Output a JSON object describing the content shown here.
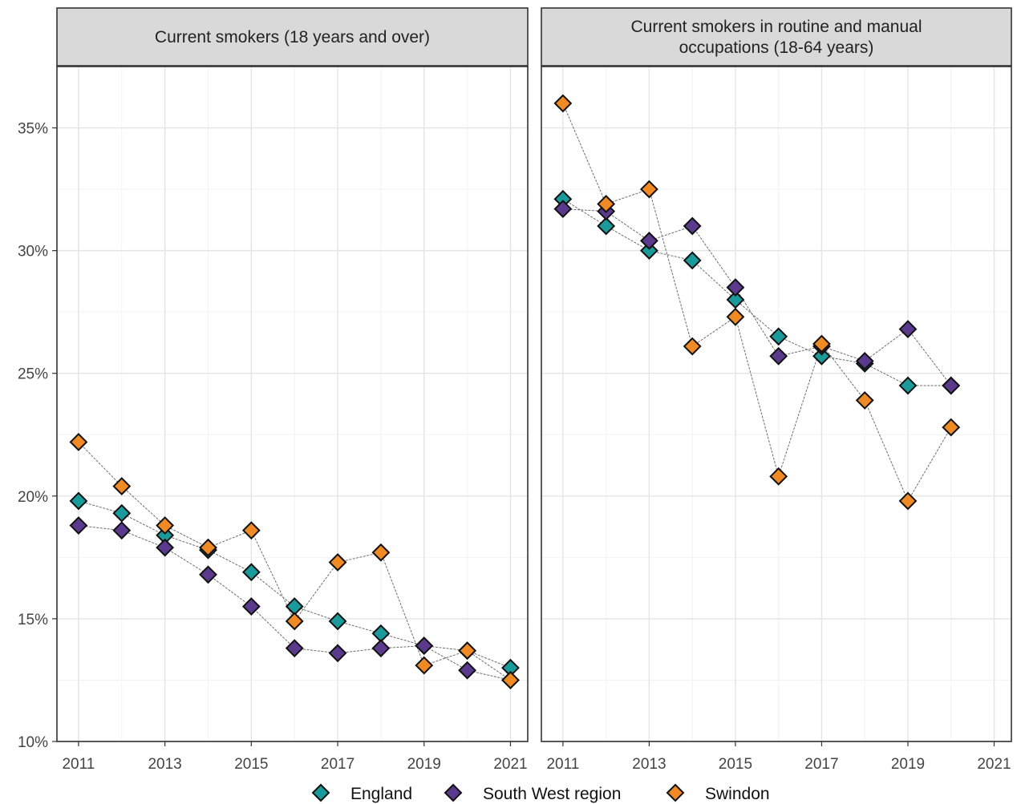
{
  "chart_data": {
    "type": "scatter",
    "ylim": [
      10,
      37.5
    ],
    "xlim": [
      2010.5,
      2021.4
    ],
    "yticks": [
      10,
      15,
      20,
      25,
      30,
      35
    ],
    "ytick_labels": [
      "10%",
      "15%",
      "20%",
      "25%",
      "30%",
      "35%"
    ],
    "xticks": [
      2011,
      2013,
      2015,
      2017,
      2019,
      2021
    ],
    "xtick_labels": [
      "2011",
      "2013",
      "2015",
      "2017",
      "2019",
      "2021"
    ],
    "grid": true,
    "legend_position": "bottom",
    "legend": [
      {
        "name": "England",
        "color": "#1a9a9a"
      },
      {
        "name": "South West region",
        "color": "#5b3a8e"
      },
      {
        "name": "Swindon",
        "color": "#f08a24"
      }
    ],
    "panels": [
      {
        "title_lines": [
          "Current smokers (18 years and over)"
        ],
        "x": [
          2011,
          2012,
          2013,
          2014,
          2015,
          2016,
          2017,
          2018,
          2019,
          2020,
          2021
        ],
        "series": [
          {
            "name": "England",
            "values": [
              19.8,
              19.3,
              18.4,
              17.8,
              16.9,
              15.5,
              14.9,
              14.4,
              13.9,
              13.7,
              13.0
            ]
          },
          {
            "name": "South West region",
            "values": [
              18.8,
              18.6,
              17.9,
              16.8,
              15.5,
              13.8,
              13.6,
              13.8,
              13.9,
              12.9,
              12.5
            ]
          },
          {
            "name": "Swindon",
            "values": [
              22.2,
              20.4,
              18.8,
              17.9,
              18.6,
              14.9,
              17.3,
              17.7,
              13.1,
              13.7,
              12.5
            ]
          }
        ]
      },
      {
        "title_lines": [
          "Current smokers in routine and manual",
          "occupations (18-64 years)"
        ],
        "x": [
          2011,
          2012,
          2013,
          2014,
          2015,
          2016,
          2017,
          2018,
          2019,
          2020
        ],
        "series": [
          {
            "name": "England",
            "values": [
              32.1,
              31.0,
              30.0,
              29.6,
              28.0,
              26.5,
              25.7,
              25.4,
              24.5,
              24.5
            ]
          },
          {
            "name": "South West region",
            "values": [
              31.7,
              31.6,
              30.4,
              31.0,
              28.5,
              25.7,
              26.1,
              25.5,
              26.8,
              24.5
            ]
          },
          {
            "name": "Swindon",
            "values": [
              36.0,
              31.9,
              32.5,
              26.1,
              27.3,
              20.8,
              26.2,
              23.9,
              19.8,
              22.8
            ]
          }
        ]
      }
    ]
  }
}
